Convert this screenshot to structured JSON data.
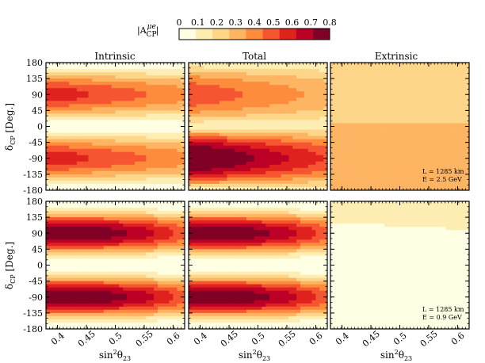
{
  "colorbar": {
    "label_prefix": "|A",
    "label_sub": "CP",
    "label_sup": "μe",
    "label_suffix": "|",
    "ticks": [
      "0",
      "0.1",
      "0.2",
      "0.3",
      "0.4",
      "0.5",
      "0.6",
      "0.7",
      "0.8"
    ],
    "colors": [
      "#ffffe3",
      "#ffeeb4",
      "#fed68a",
      "#feb563",
      "#fd8d3c",
      "#f55631",
      "#e0221f",
      "#bc0026",
      "#800026"
    ]
  },
  "axes": {
    "xticks": [
      "0.4",
      "0.45",
      "0.5",
      "0.55",
      "0.6"
    ],
    "yticks": [
      "180",
      "135",
      "90",
      "45",
      "0",
      "-45",
      "-90",
      "-135",
      "-180"
    ],
    "xlabel_base": "sin",
    "xlabel_sup": "2",
    "xlabel_theta": "θ",
    "xlabel_sub": "23",
    "ylabel_delta": "δ",
    "ylabel_sub": "CP",
    "ylabel_unit": " [Deg.]"
  },
  "panel_titles": [
    "Intrinsic",
    "Total",
    "Extrinsic"
  ],
  "annotations": {
    "top": {
      "line1": "L = 1285 km",
      "line2": "E = 2.5 GeV"
    },
    "bottom": {
      "line1": "L = 1285 km",
      "line2": "E = 0.9 GeV"
    }
  },
  "chart_data": [
    {
      "type": "heatmap",
      "name": "Intrinsic",
      "row": "top",
      "xlabel": "",
      "ylabel": "δCP [Deg.]",
      "xlim": [
        0.38,
        0.62
      ],
      "ylim": [
        -180,
        180
      ],
      "z_range": [
        0,
        0.8
      ],
      "model": {
        "kind": "sin",
        "amp": 0.6,
        "phase": 90,
        "slope": 0.35,
        "min": 0,
        "max": 0.8
      }
    },
    {
      "type": "heatmap",
      "name": "Total",
      "row": "top",
      "xlabel": "",
      "ylabel": "",
      "xlim": [
        0.38,
        0.62
      ],
      "ylim": [
        -180,
        180
      ],
      "z_range": [
        0,
        0.8
      ],
      "model": {
        "kind": "sin",
        "amp": 0.8,
        "phase": 90,
        "offset": -0.2,
        "slope": 0.45,
        "min": 0,
        "max": 0.8
      }
    },
    {
      "type": "heatmap",
      "name": "Extrinsic",
      "row": "top",
      "xlabel": "",
      "ylabel": "",
      "xlim": [
        0.38,
        0.62
      ],
      "ylim": [
        -180,
        180
      ],
      "z_range": [
        0,
        0.8
      ],
      "model": {
        "kind": "extrinsic",
        "base": 0.35,
        "hi_start": 30,
        "hi_value": 0.22,
        "slope": 0.15,
        "min": 0,
        "max": 0.8
      }
    },
    {
      "type": "heatmap",
      "name": "Intrinsic",
      "row": "bottom",
      "xlabel": "sin²θ23",
      "ylabel": "δCP [Deg.]",
      "xlim": [
        0.38,
        0.62
      ],
      "ylim": [
        -180,
        180
      ],
      "z_range": [
        0,
        0.8
      ],
      "model": {
        "kind": "sin2",
        "amp": 0.8,
        "phase": 90,
        "slope": 0.55,
        "min": 0,
        "max": 0.8
      }
    },
    {
      "type": "heatmap",
      "name": "Total",
      "row": "bottom",
      "xlabel": "sin²θ23",
      "ylabel": "",
      "xlim": [
        0.38,
        0.62
      ],
      "ylim": [
        -180,
        180
      ],
      "z_range": [
        0,
        0.8
      ],
      "model": {
        "kind": "sin2",
        "amp": 0.8,
        "phase": 90,
        "slope": 0.55,
        "min": 0,
        "max": 0.8
      }
    },
    {
      "type": "heatmap",
      "name": "Extrinsic",
      "row": "bottom",
      "xlabel": "sin²θ23",
      "ylabel": "",
      "xlim": [
        0.38,
        0.62
      ],
      "ylim": [
        -180,
        180
      ],
      "z_range": [
        0,
        0.8
      ],
      "model": {
        "kind": "flat",
        "base": 0.02,
        "hi_start": 120,
        "hi_value": 0.11,
        "min": 0,
        "max": 0.8
      }
    }
  ]
}
